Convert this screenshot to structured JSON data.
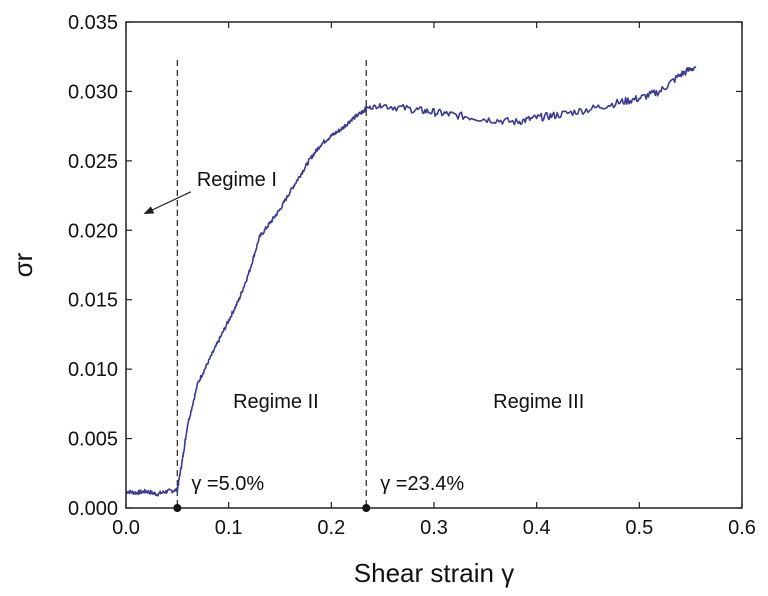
{
  "chart_data": {
    "type": "line",
    "title": "",
    "xlabel": "Shear strain γ",
    "ylabel": "σr",
    "xlim": [
      0.0,
      0.6
    ],
    "ylim": [
      0.0,
      0.035
    ],
    "x_ticks": [
      "0.0",
      "0.1",
      "0.2",
      "0.3",
      "0.4",
      "0.5",
      "0.6"
    ],
    "y_ticks": [
      "0.000",
      "0.005",
      "0.010",
      "0.015",
      "0.020",
      "0.025",
      "0.030",
      "0.035"
    ],
    "grid": false,
    "legend": "none",
    "series": [
      {
        "color": "#3b3a94",
        "x": [
          0.0,
          0.01,
          0.02,
          0.03,
          0.04,
          0.05,
          0.055,
          0.06,
          0.07,
          0.08,
          0.09,
          0.1,
          0.11,
          0.12,
          0.13,
          0.14,
          0.15,
          0.16,
          0.17,
          0.18,
          0.19,
          0.2,
          0.21,
          0.22,
          0.23,
          0.234,
          0.25,
          0.28,
          0.3,
          0.32,
          0.35,
          0.38,
          0.4,
          0.42,
          0.45,
          0.48,
          0.5,
          0.52,
          0.54,
          0.555
        ],
        "y": [
          0.0012,
          0.0011,
          0.0012,
          0.001,
          0.0012,
          0.0013,
          0.0035,
          0.006,
          0.009,
          0.0105,
          0.012,
          0.0135,
          0.015,
          0.017,
          0.0195,
          0.0205,
          0.0215,
          0.0228,
          0.024,
          0.0252,
          0.0262,
          0.0268,
          0.0273,
          0.028,
          0.0285,
          0.0288,
          0.029,
          0.0287,
          0.0285,
          0.0283,
          0.028,
          0.0278,
          0.0281,
          0.0283,
          0.0287,
          0.0292,
          0.0295,
          0.03,
          0.0312,
          0.0318
        ]
      }
    ],
    "vlines": [
      {
        "x": 0.05,
        "label": "γ =5.0%"
      },
      {
        "x": 0.234,
        "label": "γ =23.4%"
      }
    ],
    "annotations": [
      {
        "text": "Regime I",
        "x": 0.108,
        "y": 0.0232,
        "arrow_to": [
          0.018,
          0.0212
        ]
      },
      {
        "text": "Regime II",
        "x": 0.146,
        "y": 0.0072
      },
      {
        "text": "Regime III",
        "x": 0.402,
        "y": 0.0072
      }
    ]
  }
}
